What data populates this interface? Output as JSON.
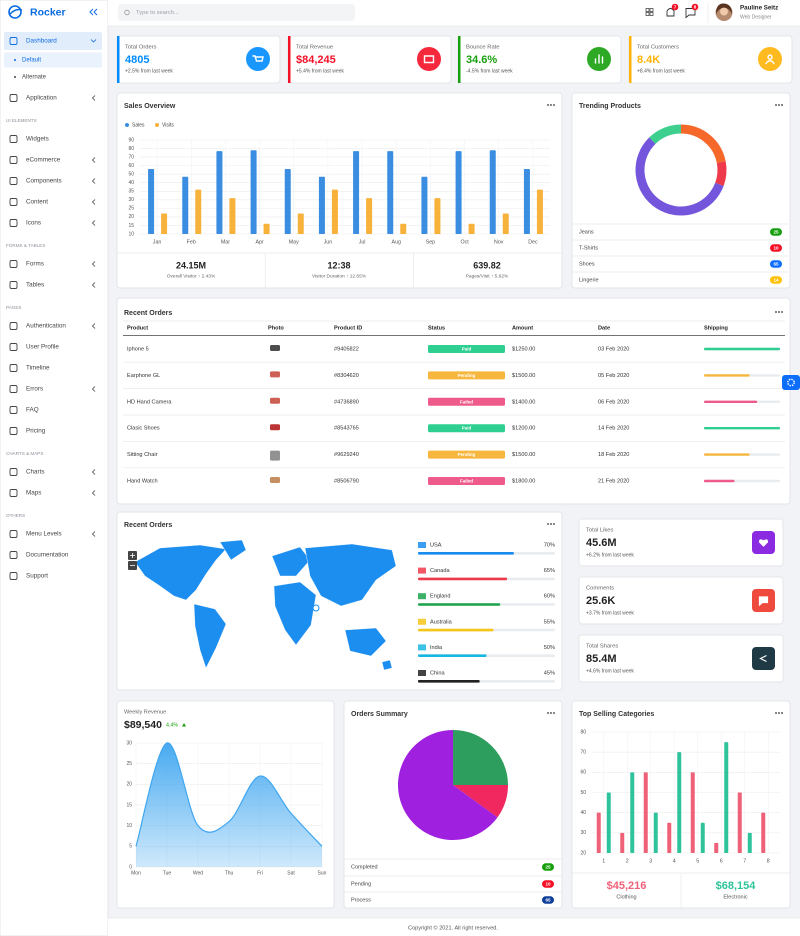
{
  "sidebar": {
    "brand": "Rocker",
    "menu": [
      {
        "label": "Dashboard",
        "submenu": true,
        "open": true,
        "children": [
          {
            "label": "Default",
            "active": true
          },
          {
            "label": "Alternate"
          }
        ]
      },
      {
        "label": "Application",
        "submenu": true
      },
      {
        "section": "UI ELEMENTS"
      },
      {
        "label": "Widgets"
      },
      {
        "label": "eCommerce",
        "submenu": true
      },
      {
        "label": "Components",
        "submenu": true
      },
      {
        "label": "Content",
        "submenu": true
      },
      {
        "label": "Icons",
        "submenu": true
      },
      {
        "section": "FORMS & TABLES"
      },
      {
        "label": "Forms",
        "submenu": true
      },
      {
        "label": "Tables",
        "submenu": true
      },
      {
        "section": "PAGES"
      },
      {
        "label": "Authentication",
        "submenu": true
      },
      {
        "label": "User Profile"
      },
      {
        "label": "Timeline"
      },
      {
        "label": "Errors",
        "submenu": true
      },
      {
        "label": "FAQ"
      },
      {
        "label": "Pricing"
      },
      {
        "section": "CHARTS & MAPS"
      },
      {
        "label": "Charts",
        "submenu": true
      },
      {
        "label": "Maps",
        "submenu": true
      },
      {
        "section": "OTHERS"
      },
      {
        "label": "Menu Levels",
        "submenu": true
      },
      {
        "label": "Documentation"
      },
      {
        "label": "Support"
      }
    ]
  },
  "topbar": {
    "search_placeholder": "Type to search...",
    "notifications": "7",
    "messages": "8",
    "user": {
      "name": "Pauline Seitz",
      "role": "Web Designer"
    }
  },
  "stat_cards": [
    {
      "title": "Total Orders",
      "value": "4805",
      "change": "+2.5% from last week",
      "color": "#008cff"
    },
    {
      "title": "Total Revenue",
      "value": "$84,245",
      "change": "+5.4% from last week",
      "color": "#f41127"
    },
    {
      "title": "Bounce Rate",
      "value": "34.6%",
      "change": "-4.5% from last week",
      "color": "#17a00e"
    },
    {
      "title": "Total Customers",
      "value": "8.4K",
      "change": "+8.4% from last week",
      "color": "#ffb207"
    }
  ],
  "sales_stats": [
    {
      "value": "24.15M",
      "label": "Overall Visitor ↑ 2.43%"
    },
    {
      "value": "12:38",
      "label": "Visitor Duration ↑ 12.65%"
    },
    {
      "value": "639.82",
      "label": "Pages/Visit ↑ 5.62%"
    }
  ],
  "recent_orders": {
    "title": "Recent Orders",
    "columns": [
      "Product",
      "Photo",
      "Product ID",
      "Status",
      "Amount",
      "Date",
      "Shipping"
    ],
    "shipping_xlim": [
      0,
      100
    ],
    "rows": [
      {
        "product": "Iphone 5",
        "id": "#9405822",
        "status": "Paid",
        "amount": "$1250.00",
        "date": "03 Feb 2020",
        "shipping": 100,
        "color": "#2fcf92"
      },
      {
        "product": "Earphone GL",
        "id": "#8304620",
        "status": "Pending",
        "amount": "$1500.00",
        "date": "05 Feb 2020",
        "shipping": 60,
        "color": "#f7b73e"
      },
      {
        "product": "HD Hand Camera",
        "id": "#4736890",
        "status": "Failed",
        "amount": "$1400.00",
        "date": "06 Feb 2020",
        "shipping": 70,
        "color": "#ee5b8b"
      },
      {
        "product": "Clasic Shoes",
        "id": "#8543765",
        "status": "Paid",
        "amount": "$1200.00",
        "date": "14 Feb 2020",
        "shipping": 100,
        "color": "#2fcf92"
      },
      {
        "product": "Sitting Chair",
        "id": "#9629240",
        "status": "Pending",
        "amount": "$1500.00",
        "date": "18 Feb 2020",
        "shipping": 60,
        "color": "#f7b73e"
      },
      {
        "product": "Hand Watch",
        "id": "#8506790",
        "status": "Failed",
        "amount": "$1800.00",
        "date": "21 Feb 2020",
        "shipping": 40,
        "color": "#ee5b8b"
      }
    ]
  },
  "widgets": [
    {
      "title": "Total Likes",
      "value": "45.6M",
      "change": "+6.2% from last week",
      "color": "#8a2be2"
    },
    {
      "title": "Comments",
      "value": "25.6K",
      "change": "+3.7% from last week",
      "color": "#ee4a3e"
    },
    {
      "title": "Total Shares",
      "value": "85.4M",
      "change": "+4.6% from last week",
      "color": "#1f3a45"
    }
  ],
  "footer": "Copyright © 2021. All right reserved.",
  "chart_data": [
    {
      "type": "bar",
      "title": "Sales Overview",
      "legend": "top-left",
      "grid": true,
      "categories": [
        "Jan",
        "Feb",
        "Mar",
        "Apr",
        "May",
        "Jun",
        "Jul",
        "Aug",
        "Sep",
        "Oct",
        "Nov",
        "Dec"
      ],
      "series": [
        {
          "name": "Sales",
          "color": "#3a8de0",
          "values": [
            56,
            47,
            77,
            78,
            56,
            47,
            77,
            77,
            47,
            77,
            78,
            56
          ]
        },
        {
          "name": "Visits",
          "color": "#f7b23b",
          "values": [
            22,
            36,
            31,
            16,
            22,
            36,
            31,
            16,
            31,
            16,
            22,
            36
          ]
        }
      ],
      "ylim": [
        10,
        90
      ],
      "yticks": [
        10,
        15,
        20,
        25,
        30,
        35,
        40,
        50,
        60,
        70,
        80,
        90
      ]
    },
    {
      "type": "donut",
      "title": "Trending Products",
      "categories": [
        "Jeans",
        "T-Shirts",
        "Shoes",
        "Lingerie"
      ],
      "values": [
        25,
        10,
        65,
        14
      ],
      "colors": [
        "#f5682a",
        "#ee3a4a",
        "#7456dc",
        "#3ccf8e"
      ],
      "badge_colors": [
        "#17a00e",
        "#f41127",
        "#0d6efd",
        "#ffc107"
      ]
    },
    {
      "type": "area",
      "title": "Weekly Revenue",
      "value": "$89,540",
      "change": "4.4%",
      "grid": true,
      "categories": [
        "Mon",
        "Tue",
        "Wed",
        "Thu",
        "Fri",
        "Sat",
        "Sun"
      ],
      "values": [
        5,
        30,
        10,
        11,
        22,
        13,
        5
      ],
      "color": "#3fa6f0",
      "ylim": [
        0,
        30
      ],
      "yticks": [
        0,
        5,
        10,
        15,
        20,
        25,
        30
      ]
    },
    {
      "type": "pie",
      "title": "Orders Summary",
      "categories": [
        "Completed",
        "Pending",
        "Process"
      ],
      "values": [
        25,
        10,
        65
      ],
      "colors": [
        "#2e9e5e",
        "#f0285f",
        "#a020e0"
      ],
      "badge_colors": [
        "#17a00e",
        "#f41127",
        "#0d3d9a"
      ]
    },
    {
      "type": "bar",
      "title": "Top Selling Categories",
      "grid": true,
      "categories": [
        "1",
        "2",
        "3",
        "4",
        "5",
        "6",
        "7",
        "8"
      ],
      "series": [
        {
          "name": "Clothing",
          "total": "$45,216",
          "color": "#ef6179",
          "values": [
            40,
            30,
            60,
            35,
            60,
            25,
            50,
            40
          ]
        },
        {
          "name": "Electronic",
          "total": "$68,154",
          "color": "#2fc39b",
          "values": [
            50,
            60,
            40,
            70,
            35,
            75,
            30,
            null
          ]
        }
      ],
      "ylim": [
        20,
        80
      ],
      "yticks": [
        20,
        30,
        40,
        50,
        60,
        70,
        80
      ]
    },
    {
      "type": "progress",
      "title": "Recent Orders",
      "categories": [
        "USA",
        "Canada",
        "England",
        "Australia",
        "India",
        "China"
      ],
      "values": [
        70,
        65,
        60,
        55,
        50,
        45
      ],
      "value_labels": [
        "70%",
        "65%",
        "60%",
        "55%",
        "50%",
        "45%"
      ],
      "colors": [
        "#1a8cf0",
        "#ee3a4a",
        "#1aa34a",
        "#f5c518",
        "#17b8e0",
        "#222222"
      ],
      "xlim": [
        0,
        100
      ]
    }
  ]
}
